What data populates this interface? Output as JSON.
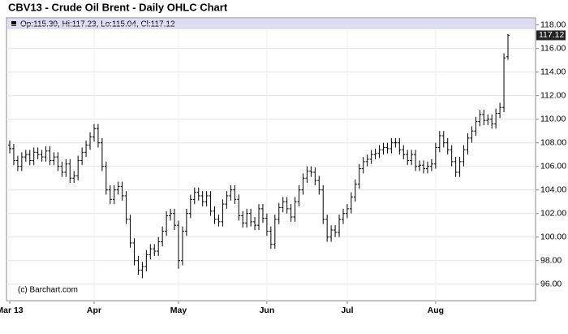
{
  "chart_data": {
    "type": "ohlc",
    "title": "CBV13 - Crude Oil Brent - Daily OHLC Chart",
    "legend_text": "Op:115.30, Hi:117.23, Lo:115.04, Cl:117.12",
    "copyright": "(c) Barchart.com",
    "last_price_label": "117.12",
    "color": "#000000",
    "grid": true,
    "ylim": [
      94.6,
      118.6
    ],
    "yticks": [
      {
        "value": 96,
        "label": "96.00"
      },
      {
        "value": 98,
        "label": "98.00"
      },
      {
        "value": 100,
        "label": "100.00"
      },
      {
        "value": 102,
        "label": "102.00"
      },
      {
        "value": 104,
        "label": "104.00"
      },
      {
        "value": 106,
        "label": "106.00"
      },
      {
        "value": 108,
        "label": "108.00"
      },
      {
        "value": 110,
        "label": "110.00"
      },
      {
        "value": 112,
        "label": "112.00"
      },
      {
        "value": 114,
        "label": "114.00"
      },
      {
        "value": 116,
        "label": "116.00"
      },
      {
        "value": 118,
        "label": "118.00"
      }
    ],
    "categories": [
      "Mar 13",
      null,
      null,
      null,
      null,
      null,
      null,
      null,
      null,
      null,
      null,
      null,
      null,
      null,
      null,
      null,
      null,
      null,
      null,
      null,
      null,
      "Apr",
      null,
      null,
      null,
      null,
      null,
      null,
      null,
      null,
      null,
      null,
      null,
      null,
      null,
      null,
      null,
      null,
      null,
      null,
      null,
      null,
      "May",
      null,
      null,
      null,
      null,
      null,
      null,
      null,
      null,
      null,
      null,
      null,
      null,
      null,
      null,
      null,
      null,
      null,
      null,
      null,
      null,
      null,
      "Jun",
      null,
      null,
      null,
      null,
      null,
      null,
      null,
      null,
      null,
      null,
      null,
      null,
      null,
      null,
      null,
      null,
      null,
      null,
      null,
      "Jul",
      null,
      null,
      null,
      null,
      null,
      null,
      null,
      null,
      null,
      null,
      null,
      null,
      null,
      null,
      null,
      null,
      null,
      null,
      null,
      null,
      null,
      "Aug",
      null,
      null,
      null,
      null,
      null,
      null,
      null,
      null,
      null,
      null,
      null,
      null,
      null,
      null,
      null,
      null,
      null,
      null
    ],
    "ohlc": [
      [
        107.8,
        108.2,
        107.1,
        107.5
      ],
      [
        107.5,
        107.9,
        106.1,
        106.5
      ],
      [
        106.5,
        106.9,
        105.6,
        106
      ],
      [
        106,
        107.2,
        105.6,
        106.8
      ],
      [
        106.8,
        107.4,
        106.4,
        107
      ],
      [
        107,
        107.4,
        106.1,
        106.5
      ],
      [
        106.5,
        107.6,
        106.1,
        107.2
      ],
      [
        107.2,
        107.6,
        106.6,
        107
      ],
      [
        107,
        107.4,
        106.4,
        106.8
      ],
      [
        106.8,
        107.7,
        106.4,
        107.3
      ],
      [
        107.3,
        107.7,
        106.1,
        106.5
      ],
      [
        106.5,
        107.2,
        106.1,
        106.8
      ],
      [
        106.8,
        107.2,
        105.6,
        106
      ],
      [
        106,
        106.4,
        105.1,
        105.5
      ],
      [
        105.5,
        106.6,
        105.1,
        106.2
      ],
      [
        106.2,
        106.6,
        104.6,
        105
      ],
      [
        105,
        105.6,
        104.6,
        105.2
      ],
      [
        105.2,
        106.9,
        104.8,
        106.5
      ],
      [
        106.5,
        107.6,
        106.1,
        107.2
      ],
      [
        107.2,
        108.2,
        106.8,
        107.8
      ],
      [
        107.8,
        108.9,
        107.4,
        108.5
      ],
      [
        108.5,
        109.6,
        108.1,
        109.2
      ],
      [
        109.2,
        109.6,
        107.6,
        108
      ],
      [
        108,
        108.4,
        105.6,
        106
      ],
      [
        106,
        106.4,
        103.6,
        104
      ],
      [
        104,
        104.4,
        102.8,
        103.2
      ],
      [
        103.2,
        104.4,
        102.8,
        104
      ],
      [
        104,
        104.7,
        103.6,
        104.3
      ],
      [
        104.3,
        104.7,
        103.1,
        103.5
      ],
      [
        103.5,
        103.9,
        101.1,
        101.5
      ],
      [
        101.5,
        101.9,
        99.1,
        99.5
      ],
      [
        99.5,
        99.9,
        97.6,
        98
      ],
      [
        98,
        98.4,
        96.8,
        97.2
      ],
      [
        97.2,
        97.9,
        96.5,
        97.5
      ],
      [
        97.5,
        98.9,
        97.1,
        98.5
      ],
      [
        98.5,
        99.4,
        98.1,
        99
      ],
      [
        99,
        99.4,
        98.4,
        98.8
      ],
      [
        98.8,
        100,
        98.4,
        99.6
      ],
      [
        99.6,
        100.9,
        99.2,
        100.5
      ],
      [
        100.5,
        102.2,
        100.1,
        101.8
      ],
      [
        101.8,
        102.4,
        101.4,
        102
      ],
      [
        102,
        102.4,
        100.6,
        101
      ],
      [
        101,
        101.4,
        97.3,
        98
      ],
      [
        98,
        100.9,
        97.6,
        100.5
      ],
      [
        100.5,
        102.4,
        100.1,
        102
      ],
      [
        102,
        103.6,
        101.6,
        103.2
      ],
      [
        103.2,
        104.2,
        102.8,
        103.8
      ],
      [
        103.8,
        104.2,
        103.1,
        103.5
      ],
      [
        103.5,
        103.9,
        102.6,
        103
      ],
      [
        103,
        103.9,
        102.6,
        103.5
      ],
      [
        103.5,
        103.9,
        101.8,
        102.2
      ],
      [
        102.2,
        102.6,
        101.1,
        101.5
      ],
      [
        101.5,
        101.9,
        100.9,
        101.3
      ],
      [
        101.3,
        103.2,
        100.9,
        102.8
      ],
      [
        102.8,
        103.9,
        102.4,
        103.5
      ],
      [
        103.5,
        104.4,
        103.1,
        104
      ],
      [
        104,
        104.4,
        102.8,
        103.2
      ],
      [
        103.2,
        103.6,
        101.4,
        101.8
      ],
      [
        101.8,
        102.2,
        100.8,
        101.2
      ],
      [
        101.2,
        102.4,
        100.8,
        102
      ],
      [
        102,
        102.4,
        100.9,
        101.3
      ],
      [
        101.3,
        101.7,
        100.6,
        101
      ],
      [
        101,
        102.8,
        100.6,
        102.4
      ],
      [
        102.4,
        102.8,
        101.2,
        101.6
      ],
      [
        101.6,
        102,
        100.1,
        100.5
      ],
      [
        100.5,
        100.9,
        99,
        99.4
      ],
      [
        99.4,
        101.9,
        99,
        101.5
      ],
      [
        101.5,
        102.9,
        101.1,
        102.5
      ],
      [
        102.5,
        103.4,
        102.1,
        103
      ],
      [
        103,
        103.4,
        102,
        102.4
      ],
      [
        102.4,
        102.8,
        101.3,
        101.7
      ],
      [
        101.7,
        103.4,
        101.3,
        103
      ],
      [
        103,
        104.4,
        102.6,
        104
      ],
      [
        104,
        105.4,
        103.6,
        105
      ],
      [
        105,
        106,
        104.6,
        105.6
      ],
      [
        105.6,
        106,
        105.1,
        105.5
      ],
      [
        105.5,
        105.9,
        104.4,
        104.8
      ],
      [
        104.8,
        105.2,
        103.6,
        104
      ],
      [
        104,
        104.4,
        101.1,
        101.5
      ],
      [
        101.5,
        101.9,
        99.6,
        100
      ],
      [
        100,
        101,
        99.6,
        100.6
      ],
      [
        100.6,
        101,
        100,
        100.4
      ],
      [
        100.4,
        101.9,
        100,
        101.5
      ],
      [
        101.5,
        102.4,
        101.1,
        102
      ],
      [
        102,
        102.8,
        101.6,
        102.4
      ],
      [
        102.4,
        103.8,
        102,
        103.4
      ],
      [
        103.4,
        104.9,
        103,
        104.5
      ],
      [
        104.5,
        106.2,
        104.1,
        105.8
      ],
      [
        105.8,
        106.8,
        105.4,
        106.4
      ],
      [
        106.4,
        107,
        106,
        106.6
      ],
      [
        106.6,
        107.4,
        106.2,
        107
      ],
      [
        107,
        107.5,
        106.6,
        107.1
      ],
      [
        107.1,
        107.8,
        106.7,
        107.4
      ],
      [
        107.4,
        108,
        107,
        107.6
      ],
      [
        107.6,
        108,
        107.1,
        107.5
      ],
      [
        107.5,
        108.4,
        107.1,
        108
      ],
      [
        108,
        108.4,
        107.6,
        108
      ],
      [
        108,
        108.4,
        107,
        107.4
      ],
      [
        107.4,
        107.8,
        106.6,
        107
      ],
      [
        107,
        107.4,
        106.1,
        106.5
      ],
      [
        106.5,
        107.4,
        106.1,
        107
      ],
      [
        107,
        107.4,
        105.6,
        106
      ],
      [
        106,
        106.5,
        105.6,
        106.1
      ],
      [
        106.1,
        106.5,
        105.4,
        105.8
      ],
      [
        105.8,
        106.4,
        105.4,
        106
      ],
      [
        106,
        106.6,
        105.6,
        106.2
      ],
      [
        106.2,
        108,
        105.8,
        107.6
      ],
      [
        107.6,
        109,
        107.2,
        108.6
      ],
      [
        108.6,
        109,
        107.6,
        108
      ],
      [
        108,
        108.4,
        107,
        107.4
      ],
      [
        107.4,
        107.8,
        106,
        106.4
      ],
      [
        106.4,
        106.8,
        105.1,
        105.5
      ],
      [
        105.5,
        106.8,
        105.1,
        106.4
      ],
      [
        106.4,
        107.8,
        106,
        107.4
      ],
      [
        107.4,
        108.8,
        107,
        108.4
      ],
      [
        108.4,
        109.4,
        108,
        109
      ],
      [
        109,
        110.2,
        108.6,
        109.8
      ],
      [
        109.8,
        110.8,
        109.4,
        110.4
      ],
      [
        110.4,
        110.8,
        109.5,
        109.9
      ],
      [
        109.9,
        110.4,
        109.5,
        110
      ],
      [
        110,
        110.4,
        109.2,
        109.6
      ],
      [
        109.6,
        110.9,
        109.2,
        110.5
      ],
      [
        110.5,
        111.4,
        110.1,
        111
      ],
      [
        111,
        115.6,
        110.6,
        115.2
      ],
      [
        115.3,
        117.23,
        115.04,
        117.12
      ]
    ]
  }
}
